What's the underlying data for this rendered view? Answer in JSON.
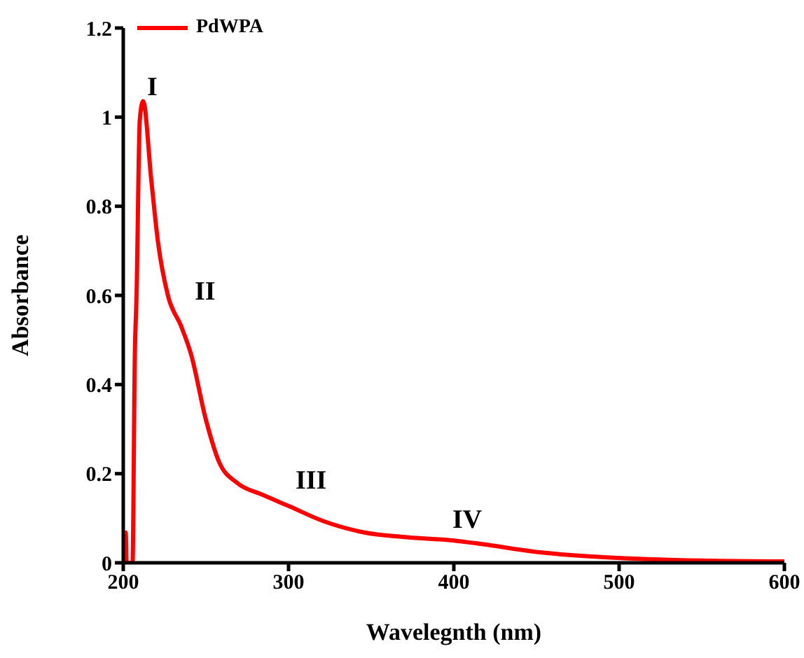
{
  "chart_data": {
    "type": "line",
    "xlabel": "Wavelegnth (nm)",
    "ylabel": "Absorbance",
    "xlim": [
      200,
      600
    ],
    "xticks": [
      200,
      300,
      400,
      500,
      600
    ],
    "ylim": [
      0,
      1.2
    ],
    "yticks": [
      0,
      0.2,
      0.4,
      0.6,
      0.8,
      1,
      1.2
    ],
    "grid": false,
    "legend": "top left",
    "marker": "none",
    "line_style": "solid",
    "series": [
      {
        "name": "PdWPA",
        "color": "#ff0000",
        "x": [
          201,
          201.5,
          202,
          205.6,
          207,
          208,
          210,
          212,
          217,
          221,
          227,
          235,
          241,
          250,
          258,
          269,
          284,
          301,
          320,
          346,
          369,
          400,
          417,
          451,
          499,
          550,
          600
        ],
        "values": [
          0.068,
          0.068,
          0,
          0,
          0.468,
          0.594,
          0.994,
          1.036,
          0.857,
          0.72,
          0.6,
          0.531,
          0.468,
          0.321,
          0.226,
          0.179,
          0.153,
          0.126,
          0.095,
          0.068,
          0.058,
          0.05,
          0.042,
          0.024,
          0.011,
          0.005,
          0.003
        ]
      }
    ],
    "annotations": [
      "I",
      "II",
      "III",
      "IV"
    ]
  }
}
